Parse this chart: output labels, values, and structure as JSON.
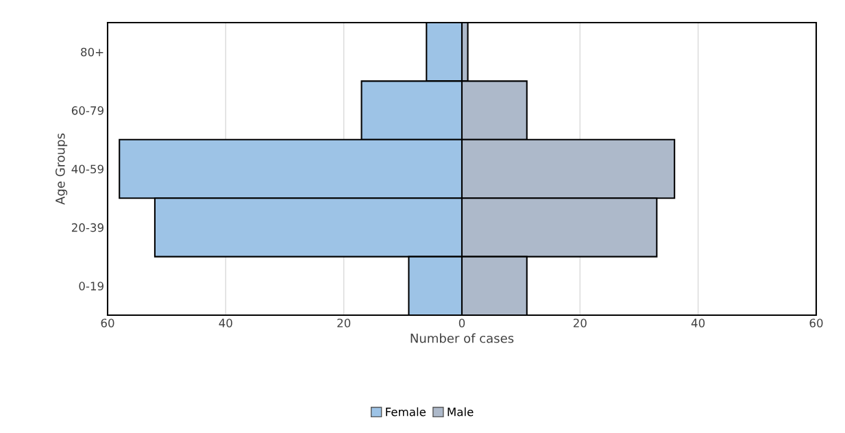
{
  "chart_data": {
    "type": "bar",
    "orientation": "horizontal",
    "stacked": true,
    "ylabel": "Age Groups",
    "xlabel": "Number of cases",
    "categories": [
      "80+",
      "60-79",
      "40-59",
      "20-39",
      "0-19"
    ],
    "series": [
      {
        "name": "Female",
        "color": "#9dc3e6",
        "values": [
          -6,
          -17,
          -58,
          -52,
          -9
        ]
      },
      {
        "name": "Male",
        "color": "#adb9ca",
        "values": [
          1,
          11,
          36,
          33,
          11
        ]
      }
    ],
    "xlim": [
      -60,
      60
    ],
    "xticks": [
      {
        "value": -60,
        "label": "60"
      },
      {
        "value": -40,
        "label": "40"
      },
      {
        "value": -20,
        "label": "20"
      },
      0,
      20,
      40,
      60
    ],
    "grid": "x",
    "legend": "bottom"
  }
}
